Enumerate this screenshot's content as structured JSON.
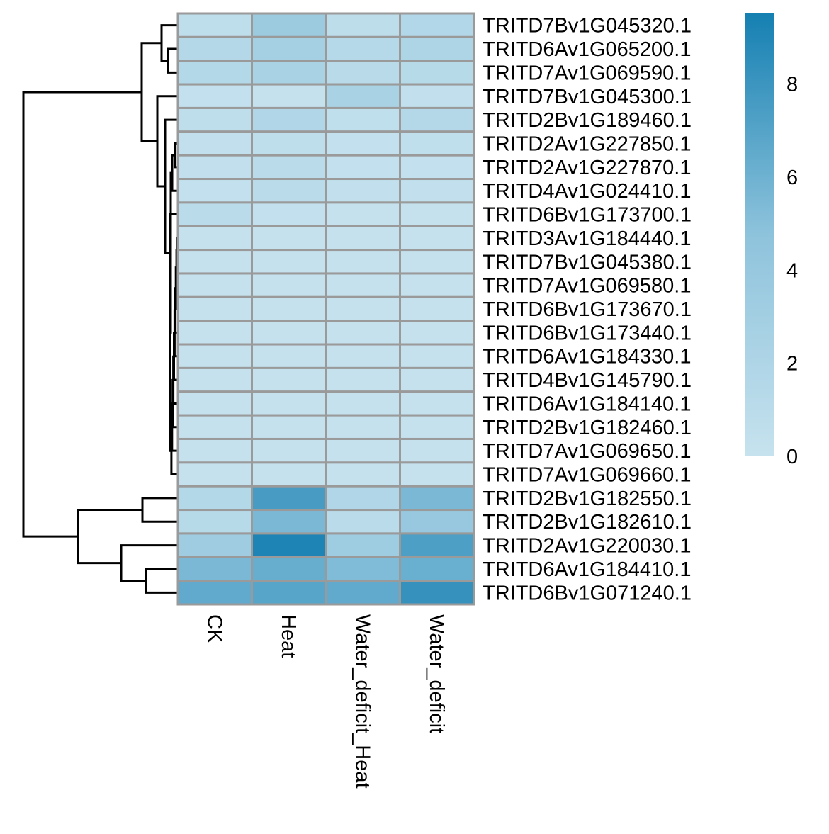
{
  "chart_data": {
    "type": "heatmap",
    "title": "",
    "columns": [
      "CK",
      "Heat",
      "Water_deficit_Heat",
      "Water_deficit"
    ],
    "rows": [
      "TRITD7Bv1G045320.1",
      "TRITD6Av1G065200.1",
      "TRITD7Av1G069590.1",
      "TRITD7Bv1G045300.1",
      "TRITD2Bv1G189460.1",
      "TRITD2Av1G227850.1",
      "TRITD2Av1G227870.1",
      "TRITD4Av1G024410.1",
      "TRITD6Bv1G173700.1",
      "TRITD3Av1G184440.1",
      "TRITD7Bv1G045380.1",
      "TRITD7Av1G069580.1",
      "TRITD6Bv1G173670.1",
      "TRITD6Bv1G173440.1",
      "TRITD6Av1G184330.1",
      "TRITD4Bv1G145790.1",
      "TRITD6Av1G184140.1",
      "TRITD2Bv1G182460.1",
      "TRITD7Av1G069650.1",
      "TRITD7Av1G069660.1",
      "TRITD2Bv1G182550.1",
      "TRITD2Bv1G182610.1",
      "TRITD2Av1G220030.1",
      "TRITD6Av1G184410.1",
      "TRITD6Bv1G071240.1"
    ],
    "values": [
      [
        0.6,
        3.6,
        0.8,
        1.7
      ],
      [
        1.5,
        2.8,
        1.4,
        2.0
      ],
      [
        1.6,
        2.5,
        1.2,
        1.3
      ],
      [
        0.3,
        0.2,
        2.4,
        0.4
      ],
      [
        0.6,
        1.9,
        0.5,
        1.5
      ],
      [
        0.4,
        0.6,
        0.3,
        0.5
      ],
      [
        0.4,
        1.1,
        0.3,
        0.3
      ],
      [
        0.3,
        1.0,
        0.4,
        0.4
      ],
      [
        1.0,
        0.3,
        0.1,
        0.1
      ],
      [
        0.1,
        0.1,
        0.1,
        0.1
      ],
      [
        0.1,
        0.1,
        0.1,
        0.1
      ],
      [
        0.1,
        0.1,
        0.1,
        0.1
      ],
      [
        0.1,
        0.1,
        0.1,
        0.1
      ],
      [
        0.1,
        0.1,
        0.1,
        0.1
      ],
      [
        0.1,
        0.1,
        0.1,
        0.1
      ],
      [
        0.1,
        0.1,
        0.1,
        0.1
      ],
      [
        0.1,
        0.1,
        0.1,
        0.1
      ],
      [
        0.1,
        0.1,
        0.1,
        0.1
      ],
      [
        0.1,
        0.1,
        0.1,
        0.1
      ],
      [
        0.1,
        0.1,
        0.1,
        0.1
      ],
      [
        1.6,
        7.5,
        1.9,
        5.5
      ],
      [
        1.3,
        5.5,
        1.1,
        4.0
      ],
      [
        3.3,
        9.2,
        3.4,
        7.3
      ],
      [
        5.5,
        6.3,
        5.3,
        6.2
      ],
      [
        6.5,
        6.9,
        6.5,
        8.2
      ]
    ],
    "color_scale": {
      "min": 0,
      "max": 9.5,
      "low_color": "#c6e2ee",
      "mid_color": "#8ec3dc",
      "high_color": "#1580b2",
      "ticks": [
        "0",
        "2",
        "4",
        "6",
        "8"
      ]
    },
    "row_dendrogram": "left",
    "cell_border_color": "#9a9a9a",
    "legend_position": "right"
  }
}
